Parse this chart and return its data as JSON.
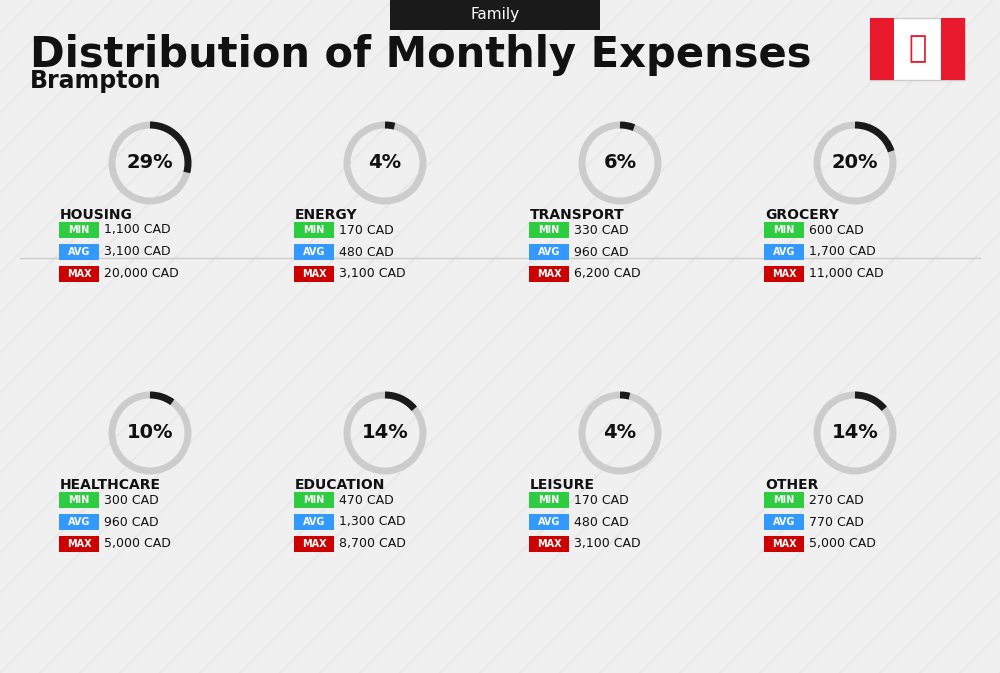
{
  "title": "Distribution of Monthly Expenses",
  "subtitle": "Brampton",
  "family_label": "Family",
  "bg_color": "#f0f0f0",
  "categories": [
    {
      "name": "HOUSING",
      "pct": 29,
      "min": "1,100 CAD",
      "avg": "3,100 CAD",
      "max": "20,000 CAD",
      "row": 0,
      "col": 0
    },
    {
      "name": "ENERGY",
      "pct": 4,
      "min": "170 CAD",
      "avg": "480 CAD",
      "max": "3,100 CAD",
      "row": 0,
      "col": 1
    },
    {
      "name": "TRANSPORT",
      "pct": 6,
      "min": "330 CAD",
      "avg": "960 CAD",
      "max": "6,200 CAD",
      "row": 0,
      "col": 2
    },
    {
      "name": "GROCERY",
      "pct": 20,
      "min": "600 CAD",
      "avg": "1,700 CAD",
      "max": "11,000 CAD",
      "row": 0,
      "col": 3
    },
    {
      "name": "HEALTHCARE",
      "pct": 10,
      "min": "300 CAD",
      "avg": "960 CAD",
      "max": "5,000 CAD",
      "row": 1,
      "col": 0
    },
    {
      "name": "EDUCATION",
      "pct": 14,
      "min": "470 CAD",
      "avg": "1,300 CAD",
      "max": "8,700 CAD",
      "row": 1,
      "col": 1
    },
    {
      "name": "LEISURE",
      "pct": 4,
      "min": "170 CAD",
      "avg": "480 CAD",
      "max": "3,100 CAD",
      "row": 1,
      "col": 2
    },
    {
      "name": "OTHER",
      "pct": 14,
      "min": "270 CAD",
      "avg": "770 CAD",
      "max": "5,000 CAD",
      "row": 1,
      "col": 3
    }
  ],
  "min_color": "#2ecc40",
  "avg_color": "#3399ff",
  "max_color": "#cc0000",
  "ring_color_dark": "#1a1a1a",
  "ring_color_light": "#cccccc",
  "label_color": "#111111"
}
